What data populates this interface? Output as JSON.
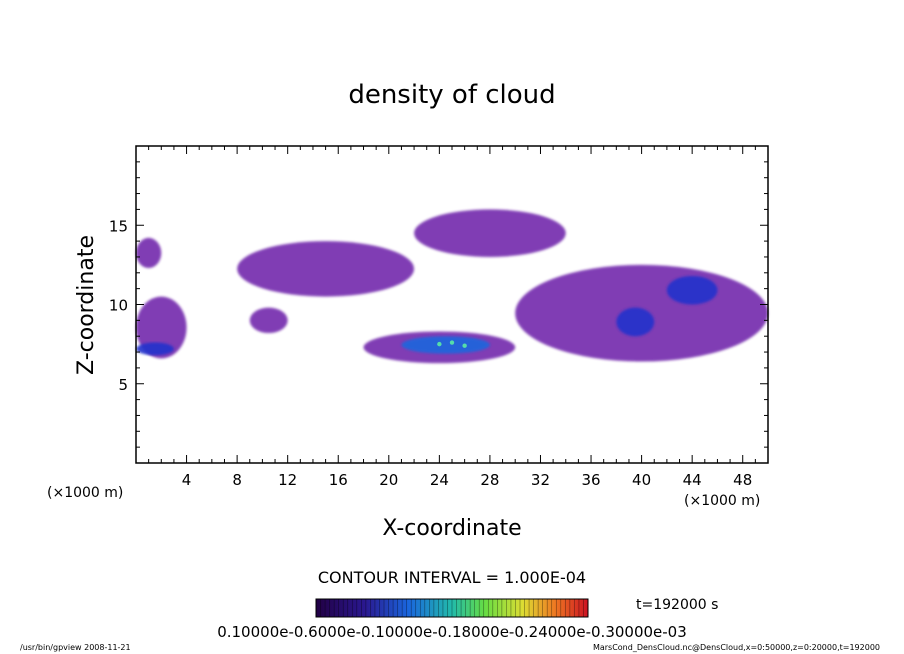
{
  "chart_data": {
    "type": "heatmap",
    "title": "density of cloud",
    "xlabel": "X-coordinate",
    "ylabel": "Z-coordinate",
    "x_unit_left": "(×1000 m)",
    "x_unit_right": "(×1000 m)",
    "xlim": [
      0,
      50
    ],
    "ylim": [
      0,
      20
    ],
    "xticks": [
      4,
      8,
      12,
      16,
      20,
      24,
      28,
      32,
      36,
      40,
      44,
      48
    ],
    "yticks": [
      5,
      10,
      15
    ],
    "contour_interval": "CONTOUR INTERVAL = 1.000E-04",
    "time_label": "t=192000 s",
    "colorbar_labels": "0.10000e-0.6000e-0.10000e-0.18000e-0.24000e-0.30000e-03",
    "cloud_regions": [
      {
        "xmin": 0,
        "xmax": 4,
        "zmin": 6.6,
        "zmax": 10.5,
        "level": "low"
      },
      {
        "xmin": 0,
        "xmax": 3,
        "zmin": 6.8,
        "zmax": 7.6,
        "level": "mid"
      },
      {
        "xmin": 0,
        "xmax": 2,
        "zmin": 12.3,
        "zmax": 14.2,
        "level": "low"
      },
      {
        "xmin": 8,
        "xmax": 22,
        "zmin": 10.5,
        "zmax": 14.0,
        "level": "low"
      },
      {
        "xmin": 9,
        "xmax": 12,
        "zmin": 8.2,
        "zmax": 9.8,
        "level": "low"
      },
      {
        "xmin": 18,
        "xmax": 30,
        "zmin": 6.3,
        "zmax": 8.3,
        "level": "low"
      },
      {
        "xmin": 21,
        "xmax": 28,
        "zmin": 6.9,
        "zmax": 8.0,
        "level": "high"
      },
      {
        "xmin": 22,
        "xmax": 34,
        "zmin": 13.0,
        "zmax": 16.0,
        "level": "low"
      },
      {
        "xmin": 30,
        "xmax": 50,
        "zmin": 6.4,
        "zmax": 12.5,
        "level": "low"
      },
      {
        "xmin": 38,
        "xmax": 41,
        "zmin": 8.0,
        "zmax": 9.8,
        "level": "mid"
      },
      {
        "xmin": 42,
        "xmax": 46,
        "zmin": 10.0,
        "zmax": 11.8,
        "level": "mid"
      }
    ]
  },
  "footer": {
    "left": "/usr/bin/gpview   2008-11-21",
    "right": "MarsCond_DensCloud.nc@DensCloud,x=0:50000,z=0:20000,t=192000"
  }
}
